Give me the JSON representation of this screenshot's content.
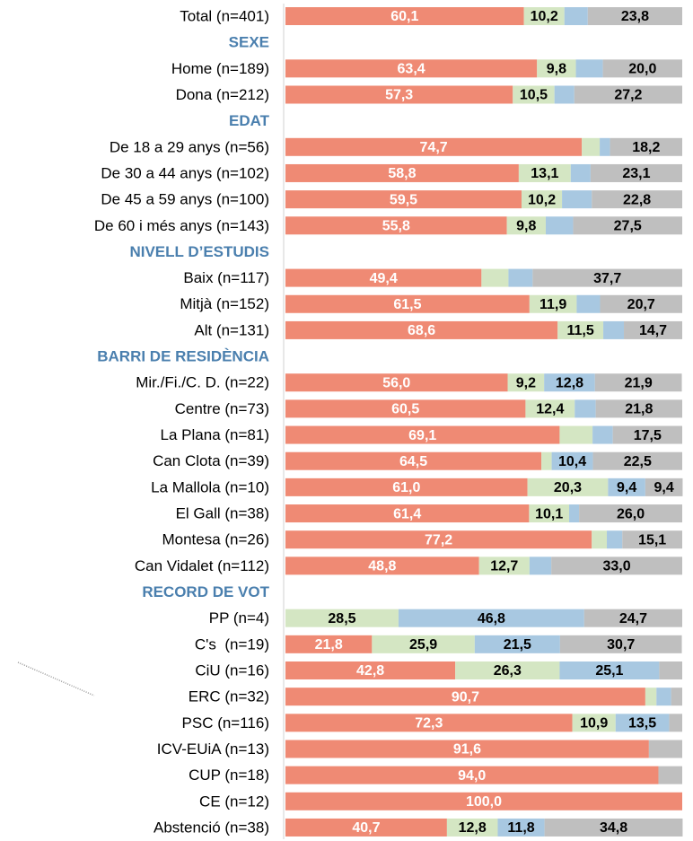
{
  "chart_data": {
    "type": "stacked-bar-horizontal",
    "categories": [
      "Total (n=401)",
      "SEXE",
      "Home (n=189)",
      "Dona (n=212)",
      "EDAT",
      "De 18 a 29 anys (n=56)",
      "De 30 a 44 anys (n=102)",
      "De 45 a 59 anys (n=100)",
      "De 60 i més anys (n=143)",
      "NIVELL D’ESTUDIS",
      "Baix (n=117)",
      "Mitjà (n=152)",
      "Alt (n=131)",
      "BARRI DE RESIDÈNCIA",
      "Mir./Fi./C. D. (n=22)",
      "Centre (n=73)",
      "La Plana (n=81)",
      "Can Clota (n=39)",
      "La Mallola (n=10)",
      "El Gall (n=38)",
      "Montesa (n=26)",
      "Can Vidalet (n=112)",
      "RECORD DE VOT",
      "PP (n=4)",
      "C's  (n=19)",
      "CiU (n=16)",
      "ERC (n=32)",
      "PSC (n=116)",
      "ICV-EUiA (n=13)",
      "CUP (n=18)",
      "CE (n=12)",
      "Abstenció (n=38)"
    ],
    "xlim": [
      0,
      100
    ],
    "series": [
      {
        "color": "#ef8a74",
        "values": [
          60.1,
          null,
          63.4,
          57.3,
          null,
          74.7,
          58.8,
          59.5,
          55.8,
          null,
          49.4,
          61.5,
          68.6,
          null,
          56.0,
          60.5,
          69.1,
          64.5,
          61.0,
          61.4,
          77.2,
          48.8,
          null,
          0,
          21.8,
          42.8,
          90.7,
          72.3,
          91.6,
          94.0,
          100.0,
          40.7
        ],
        "value_labels": [
          "60,1",
          null,
          "63,4",
          "57,3",
          null,
          "74,7",
          "58,8",
          "59,5",
          "55,8",
          null,
          "49,4",
          "61,5",
          "68,6",
          null,
          "56,0",
          "60,5",
          "69,1",
          "64,5",
          "61,0",
          "61,4",
          "77,2",
          "48,8",
          null,
          null,
          "21,8",
          "42,8",
          "90,7",
          "72,3",
          "91,6",
          "94,0",
          "100,0",
          "40,7"
        ]
      },
      {
        "color": "#d4e6c3",
        "values": [
          10.2,
          null,
          9.8,
          10.5,
          null,
          4.5,
          13.1,
          10.2,
          9.8,
          null,
          6.8,
          11.9,
          11.5,
          null,
          9.2,
          12.4,
          8.3,
          2.6,
          20.3,
          10.1,
          3.8,
          12.7,
          null,
          28.5,
          25.9,
          26.3,
          2.8,
          10.9,
          0,
          0,
          0,
          12.8
        ],
        "value_labels": [
          "10,2",
          null,
          "9,8",
          "10,5",
          null,
          null,
          "13,1",
          "10,2",
          "9,8",
          null,
          null,
          "11,9",
          "11,5",
          null,
          "9,2",
          "12,4",
          null,
          null,
          "20,3",
          "10,1",
          null,
          "12,7",
          null,
          "28,5",
          "25,9",
          "26,3",
          null,
          "10,9",
          null,
          null,
          null,
          "12,8"
        ]
      },
      {
        "color": "#a8c8e1",
        "values": [
          5.9,
          null,
          6.8,
          5.0,
          null,
          2.6,
          5.0,
          7.5,
          6.9,
          null,
          6.1,
          5.9,
          5.2,
          null,
          12.8,
          5.3,
          5.1,
          10.4,
          9.4,
          2.5,
          3.9,
          5.5,
          null,
          46.8,
          21.5,
          25.1,
          3.7,
          13.5,
          0,
          0,
          0,
          11.8
        ],
        "value_labels": [
          null,
          null,
          null,
          null,
          null,
          null,
          null,
          null,
          null,
          null,
          null,
          null,
          null,
          null,
          "12,8",
          null,
          null,
          "10,4",
          "9,4",
          null,
          null,
          null,
          null,
          "46,8",
          "21,5",
          "25,1",
          null,
          "13,5",
          null,
          null,
          null,
          "11,8"
        ]
      },
      {
        "color": "#bfbfbf",
        "values": [
          23.8,
          null,
          20.0,
          27.2,
          null,
          18.2,
          23.1,
          22.8,
          27.5,
          null,
          37.7,
          20.7,
          14.7,
          null,
          21.9,
          21.8,
          17.5,
          22.5,
          9.4,
          26.0,
          15.1,
          33.0,
          null,
          24.7,
          30.7,
          5.8,
          2.8,
          3.3,
          8.4,
          6.0,
          0,
          34.8
        ],
        "value_labels": [
          "23,8",
          null,
          "20,0",
          "27,2",
          null,
          "18,2",
          "23,1",
          "22,8",
          "27,5",
          null,
          "37,7",
          "20,7",
          "14,7",
          null,
          "21,9",
          "21,8",
          "17,5",
          "22,5",
          "9,4",
          "26,0",
          "15,1",
          "33,0",
          null,
          "24,7",
          "30,7",
          null,
          null,
          null,
          null,
          null,
          null,
          "34,8"
        ]
      }
    ]
  }
}
